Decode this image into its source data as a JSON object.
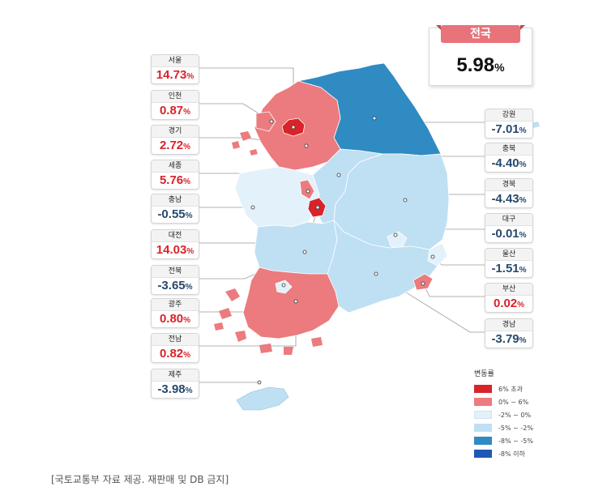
{
  "national": {
    "name": "전국",
    "value": "5.98",
    "unit": "%"
  },
  "legend": {
    "title": "변동률",
    "items": [
      {
        "label": "6% 초과",
        "color": "#d8232a"
      },
      {
        "label": "0% ~ 6%",
        "color": "#eb7b7e"
      },
      {
        "label": "-2% ~ 0%",
        "color": "#e3f1fb"
      },
      {
        "label": "-5% ~ -2%",
        "color": "#bfdff3"
      },
      {
        "label": "-8% ~ -5%",
        "color": "#2f8bc2"
      },
      {
        "label": "-8% 이하",
        "color": "#2157b6"
      }
    ]
  },
  "regions": [
    {
      "name": "서울",
      "value": "14.73",
      "unit": "%",
      "sign": "pos"
    },
    {
      "name": "인천",
      "value": "0.87",
      "unit": "%",
      "sign": "pos"
    },
    {
      "name": "경기",
      "value": "2.72",
      "unit": "%",
      "sign": "pos"
    },
    {
      "name": "세종",
      "value": "5.76",
      "unit": "%",
      "sign": "pos"
    },
    {
      "name": "충남",
      "value": "-0.55",
      "unit": "%",
      "sign": "neg"
    },
    {
      "name": "대전",
      "value": "14.03",
      "unit": "%",
      "sign": "pos"
    },
    {
      "name": "전북",
      "value": "-3.65",
      "unit": "%",
      "sign": "neg"
    },
    {
      "name": "광주",
      "value": "0.80",
      "unit": "%",
      "sign": "pos"
    },
    {
      "name": "전남",
      "value": "0.82",
      "unit": "%",
      "sign": "pos"
    },
    {
      "name": "제주",
      "value": "-3.98",
      "unit": "%",
      "sign": "neg"
    },
    {
      "name": "강원",
      "value": "-7.01",
      "unit": "%",
      "sign": "neg"
    },
    {
      "name": "충북",
      "value": "-4.40",
      "unit": "%",
      "sign": "neg"
    },
    {
      "name": "경북",
      "value": "-4.43",
      "unit": "%",
      "sign": "neg"
    },
    {
      "name": "대구",
      "value": "-0.01",
      "unit": "%",
      "sign": "neg"
    },
    {
      "name": "울산",
      "value": "-1.51",
      "unit": "%",
      "sign": "neg"
    },
    {
      "name": "부산",
      "value": "0.02",
      "unit": "%",
      "sign": "pos"
    },
    {
      "name": "경남",
      "value": "-3.79",
      "unit": "%",
      "sign": "neg"
    }
  ],
  "caption": "[국토교통부 자료 제공. 재판매 및 DB 금지]"
}
